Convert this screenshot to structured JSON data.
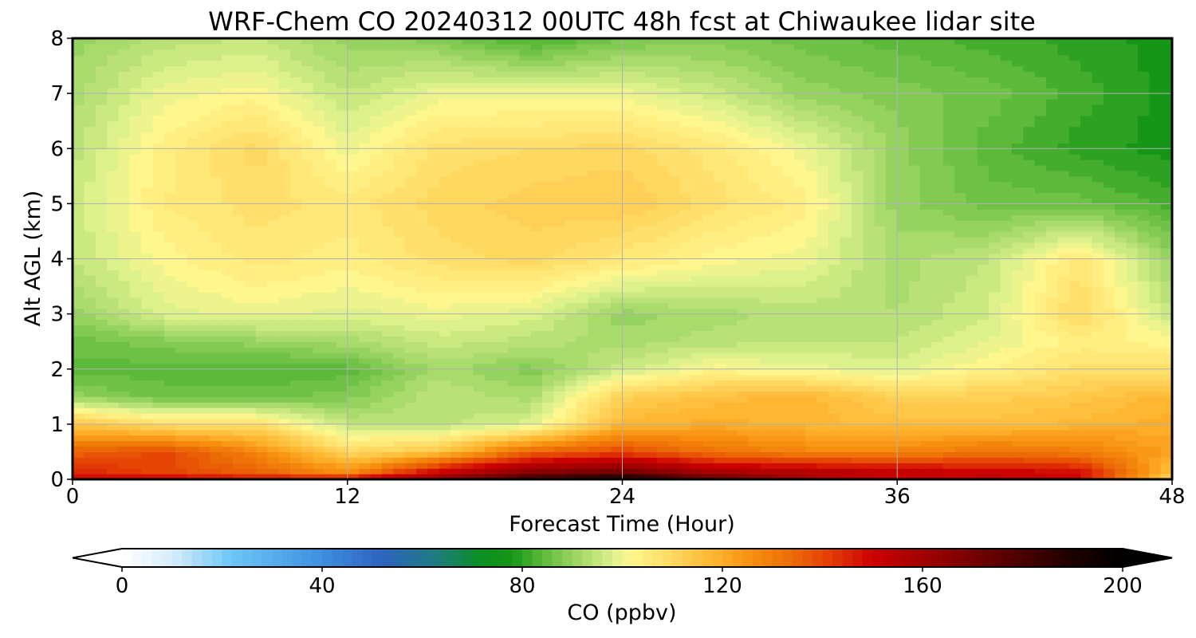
{
  "chart_data": {
    "type": "heatmap",
    "title": "WRF-Chem CO  20240312 00UTC 48h fcst at Chiwaukee lidar site",
    "xlabel": "Forecast Time (Hour)",
    "ylabel": "Alt AGL (km)",
    "xlim": [
      0,
      48
    ],
    "ylim": [
      0,
      8
    ],
    "x_ticks": [
      "0",
      "12",
      "24",
      "36",
      "48"
    ],
    "y_ticks": [
      "0",
      "1",
      "2",
      "3",
      "4",
      "5",
      "6",
      "7",
      "8"
    ],
    "grid": true,
    "x": [
      0,
      4,
      8,
      12,
      16,
      20,
      24,
      28,
      32,
      36,
      40,
      44,
      48
    ],
    "y": [
      0,
      0.15,
      0.5,
      1,
      1.5,
      2,
      2.5,
      3,
      4,
      5,
      6,
      7,
      8
    ],
    "z": [
      [
        150,
        152,
        148,
        150,
        165,
        185,
        195,
        175,
        160,
        150,
        155,
        150,
        110
      ],
      [
        145,
        140,
        135,
        125,
        150,
        165,
        170,
        158,
        155,
        152,
        150,
        148,
        115
      ],
      [
        135,
        140,
        128,
        110,
        115,
        135,
        140,
        132,
        128,
        128,
        132,
        130,
        122
      ],
      [
        115,
        108,
        108,
        95,
        94,
        98,
        118,
        120,
        118,
        116,
        116,
        118,
        120
      ],
      [
        90,
        86,
        86,
        88,
        95,
        92,
        112,
        116,
        118,
        112,
        112,
        114,
        118
      ],
      [
        84,
        84,
        83,
        84,
        92,
        88,
        96,
        102,
        100,
        98,
        103,
        108,
        108
      ],
      [
        86,
        88,
        90,
        92,
        96,
        94,
        92,
        94,
        95,
        95,
        99,
        104,
        102
      ],
      [
        90,
        98,
        100,
        98,
        100,
        98,
        90,
        92,
        94,
        93,
        97,
        110,
        95
      ],
      [
        95,
        102,
        106,
        104,
        108,
        110,
        106,
        102,
        100,
        92,
        95,
        106,
        90
      ],
      [
        96,
        105,
        108,
        106,
        110,
        112,
        113,
        108,
        104,
        90,
        86,
        86,
        82
      ],
      [
        94,
        104,
        110,
        100,
        108,
        109,
        110,
        106,
        100,
        90,
        84,
        80,
        78
      ],
      [
        92,
        100,
        102,
        95,
        100,
        100,
        100,
        96,
        90,
        88,
        86,
        82,
        78
      ],
      [
        90,
        94,
        95,
        90,
        88,
        82,
        87,
        88,
        86,
        84,
        82,
        80,
        78
      ]
    ],
    "colorbar": {
      "label": "CO  (ppbv)",
      "min": 0,
      "max": 200,
      "extend": "both",
      "ticks": [
        "0",
        "40",
        "80",
        "120",
        "160",
        "200"
      ],
      "stops": [
        {
          "v": 0,
          "c": "#ffffff"
        },
        {
          "v": 10,
          "c": "#d6ecfb"
        },
        {
          "v": 22,
          "c": "#6cc6f5"
        },
        {
          "v": 40,
          "c": "#3e8fe0"
        },
        {
          "v": 52,
          "c": "#2e63c0"
        },
        {
          "v": 62,
          "c": "#1f7a86"
        },
        {
          "v": 72,
          "c": "#0a9020"
        },
        {
          "v": 78,
          "c": "#169616"
        },
        {
          "v": 84,
          "c": "#5cb93a"
        },
        {
          "v": 92,
          "c": "#a8da6c"
        },
        {
          "v": 98,
          "c": "#dcf08c"
        },
        {
          "v": 102,
          "c": "#fff78e"
        },
        {
          "v": 110,
          "c": "#ffd860"
        },
        {
          "v": 118,
          "c": "#ffb732"
        },
        {
          "v": 126,
          "c": "#f78e0e"
        },
        {
          "v": 134,
          "c": "#ec6a06"
        },
        {
          "v": 142,
          "c": "#e33a04"
        },
        {
          "v": 150,
          "c": "#cc0000"
        },
        {
          "v": 162,
          "c": "#9a0000"
        },
        {
          "v": 176,
          "c": "#5c0000"
        },
        {
          "v": 190,
          "c": "#1e0000"
        },
        {
          "v": 200,
          "c": "#000000"
        }
      ]
    }
  }
}
